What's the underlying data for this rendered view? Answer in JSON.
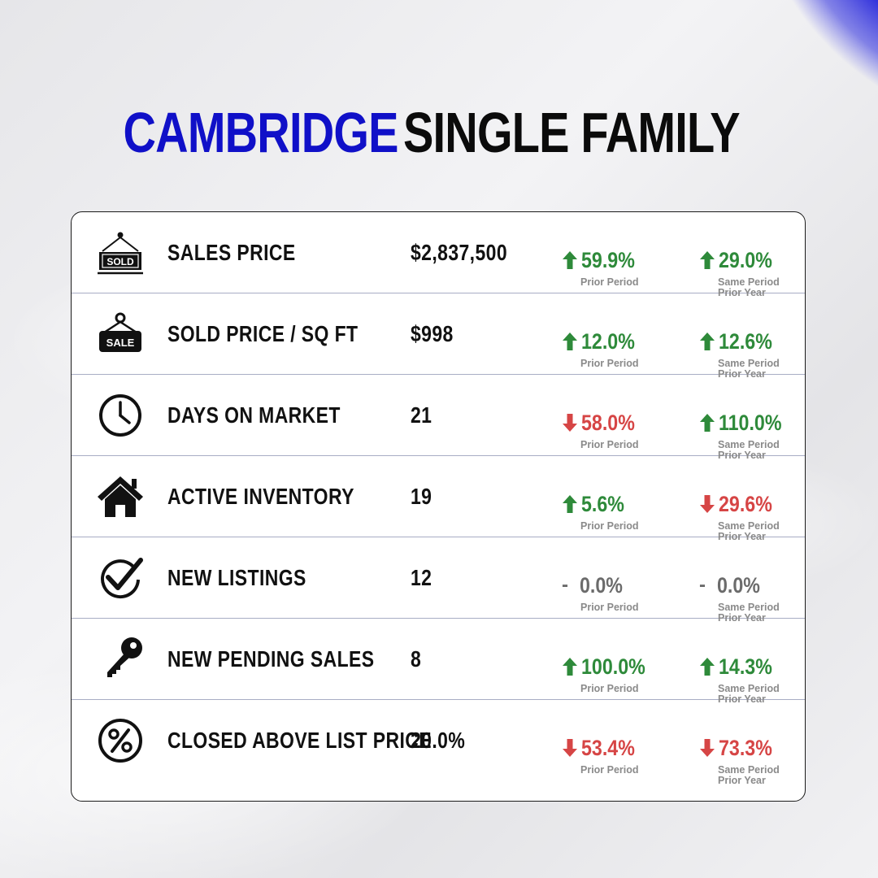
{
  "title": {
    "part1": "CAMBRIDGE",
    "part2": "SINGLE FAMILY"
  },
  "colors": {
    "accent": "#1010c8",
    "up": "#2e8a3a",
    "down": "#d64545",
    "flat": "#6b6b6b"
  },
  "rows": [
    {
      "icon": "sold-sign-icon",
      "sign_text": "SOLD",
      "label": "SALES PRICE",
      "value": "$2,837,500",
      "prior": {
        "dir": "up",
        "pct": "59.9%",
        "caption": "Prior Period"
      },
      "year": {
        "dir": "up",
        "pct": "29.0%",
        "caption1": "Same Period",
        "caption2": "Prior Year"
      }
    },
    {
      "icon": "sale-sign-icon",
      "sign_text": "SALE",
      "label": "SOLD PRICE / SQ FT",
      "value": "$998",
      "prior": {
        "dir": "up",
        "pct": "12.0%",
        "caption": "Prior Period"
      },
      "year": {
        "dir": "up",
        "pct": "12.6%",
        "caption1": "Same Period",
        "caption2": "Prior Year"
      }
    },
    {
      "icon": "clock-icon",
      "label": "DAYS ON MARKET",
      "value": "21",
      "prior": {
        "dir": "down",
        "pct": "58.0%",
        "caption": "Prior Period"
      },
      "year": {
        "dir": "up",
        "pct": "110.0%",
        "caption1": "Same Period",
        "caption2": "Prior Year"
      }
    },
    {
      "icon": "house-icon",
      "label": "ACTIVE INVENTORY",
      "value": "19",
      "prior": {
        "dir": "up",
        "pct": "5.6%",
        "caption": "Prior Period"
      },
      "year": {
        "dir": "down",
        "pct": "29.6%",
        "caption1": "Same Period",
        "caption2": "Prior Year"
      }
    },
    {
      "icon": "checkmark-circle-icon",
      "label": "NEW LISTINGS",
      "value": "12",
      "prior": {
        "dir": "flat",
        "pct": "0.0%",
        "caption": "Prior Period"
      },
      "year": {
        "dir": "flat",
        "pct": "0.0%",
        "caption1": "Same Period",
        "caption2": "Prior Year"
      }
    },
    {
      "icon": "key-icon",
      "label": "NEW PENDING SALES",
      "value": "8",
      "prior": {
        "dir": "up",
        "pct": "100.0%",
        "caption": "Prior Period"
      },
      "year": {
        "dir": "up",
        "pct": "14.3%",
        "caption1": "Same Period",
        "caption2": "Prior Year"
      }
    },
    {
      "icon": "percent-circle-icon",
      "label": "CLOSED ABOVE LIST PRICE",
      "value": "20.0%",
      "prior": {
        "dir": "down",
        "pct": "53.4%",
        "caption": "Prior Period"
      },
      "year": {
        "dir": "down",
        "pct": "73.3%",
        "caption1": "Same Period",
        "caption2": "Prior Year"
      }
    }
  ]
}
